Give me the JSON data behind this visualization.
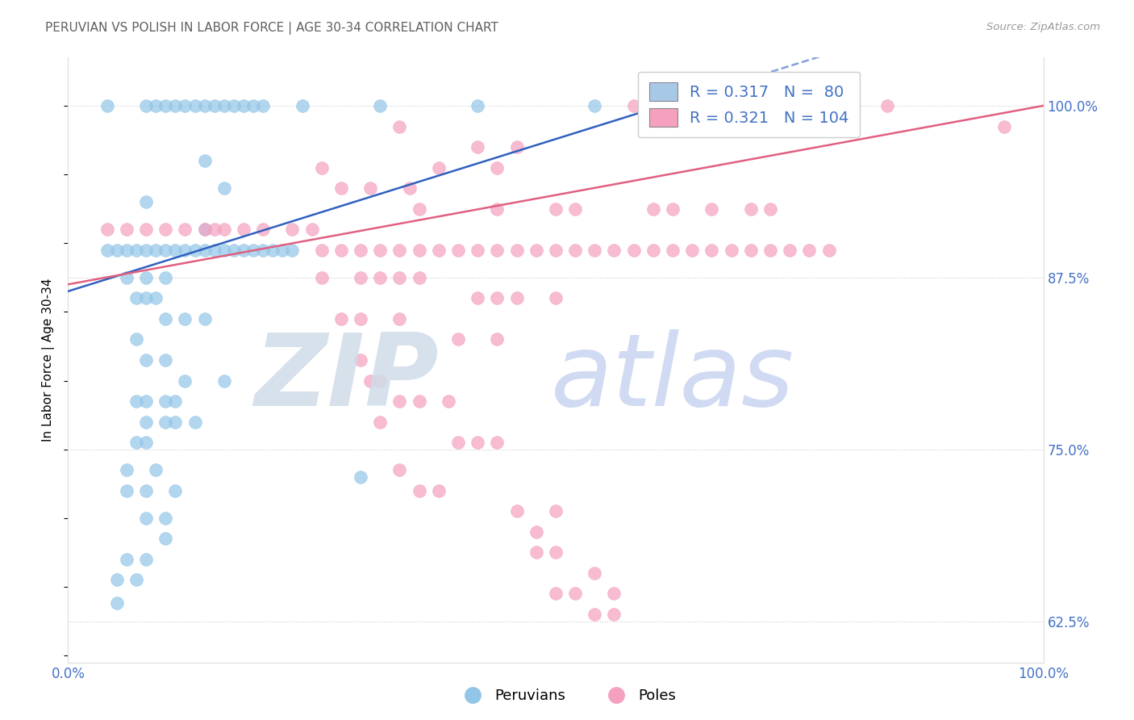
{
  "title": "PERUVIAN VS POLISH IN LABOR FORCE | AGE 30-34 CORRELATION CHART",
  "source_text": "Source: ZipAtlas.com",
  "ylabel": "In Labor Force | Age 30-34",
  "xlim": [
    0.0,
    0.5
  ],
  "ylim": [
    0.595,
    1.035
  ],
  "yticks": [
    0.625,
    0.75,
    0.875,
    1.0
  ],
  "ytick_labels": [
    "62.5%",
    "75.0%",
    "87.5%",
    "100.0%"
  ],
  "xticks": [
    0.0,
    0.5
  ],
  "xtick_labels": [
    "0.0%",
    "100.0%"
  ],
  "peruvian_color": "#92C5E8",
  "polish_color": "#F4A0BE",
  "peruvian_line_color": "#3060C0",
  "polish_line_color": "#E06080",
  "axis_color": "#4472C4",
  "title_color": "#606060",
  "title_fontsize": 11,
  "watermark_zip_color": "#D8E8F0",
  "watermark_atlas_color": "#C8D8F0",
  "peruvian_scatter": [
    [
      0.02,
      1.0
    ],
    [
      0.04,
      1.0
    ],
    [
      0.045,
      1.0
    ],
    [
      0.05,
      1.0
    ],
    [
      0.055,
      1.0
    ],
    [
      0.06,
      1.0
    ],
    [
      0.065,
      1.0
    ],
    [
      0.07,
      1.0
    ],
    [
      0.075,
      1.0
    ],
    [
      0.08,
      1.0
    ],
    [
      0.085,
      1.0
    ],
    [
      0.09,
      1.0
    ],
    [
      0.095,
      1.0
    ],
    [
      0.1,
      1.0
    ],
    [
      0.12,
      1.0
    ],
    [
      0.16,
      1.0
    ],
    [
      0.21,
      1.0
    ],
    [
      0.27,
      1.0
    ],
    [
      0.07,
      0.96
    ],
    [
      0.08,
      0.94
    ],
    [
      0.04,
      0.93
    ],
    [
      0.07,
      0.91
    ],
    [
      0.02,
      0.895
    ],
    [
      0.025,
      0.895
    ],
    [
      0.03,
      0.895
    ],
    [
      0.035,
      0.895
    ],
    [
      0.04,
      0.895
    ],
    [
      0.045,
      0.895
    ],
    [
      0.05,
      0.895
    ],
    [
      0.055,
      0.895
    ],
    [
      0.06,
      0.895
    ],
    [
      0.065,
      0.895
    ],
    [
      0.07,
      0.895
    ],
    [
      0.075,
      0.895
    ],
    [
      0.08,
      0.895
    ],
    [
      0.085,
      0.895
    ],
    [
      0.09,
      0.895
    ],
    [
      0.095,
      0.895
    ],
    [
      0.1,
      0.895
    ],
    [
      0.105,
      0.895
    ],
    [
      0.11,
      0.895
    ],
    [
      0.115,
      0.895
    ],
    [
      0.03,
      0.875
    ],
    [
      0.04,
      0.875
    ],
    [
      0.05,
      0.875
    ],
    [
      0.035,
      0.86
    ],
    [
      0.04,
      0.86
    ],
    [
      0.045,
      0.86
    ],
    [
      0.05,
      0.845
    ],
    [
      0.06,
      0.845
    ],
    [
      0.07,
      0.845
    ],
    [
      0.035,
      0.83
    ],
    [
      0.04,
      0.815
    ],
    [
      0.05,
      0.815
    ],
    [
      0.06,
      0.8
    ],
    [
      0.08,
      0.8
    ],
    [
      0.035,
      0.785
    ],
    [
      0.04,
      0.785
    ],
    [
      0.05,
      0.785
    ],
    [
      0.055,
      0.785
    ],
    [
      0.04,
      0.77
    ],
    [
      0.05,
      0.77
    ],
    [
      0.055,
      0.77
    ],
    [
      0.065,
      0.77
    ],
    [
      0.035,
      0.755
    ],
    [
      0.04,
      0.755
    ],
    [
      0.03,
      0.735
    ],
    [
      0.045,
      0.735
    ],
    [
      0.03,
      0.72
    ],
    [
      0.04,
      0.72
    ],
    [
      0.055,
      0.72
    ],
    [
      0.04,
      0.7
    ],
    [
      0.05,
      0.7
    ],
    [
      0.05,
      0.685
    ],
    [
      0.03,
      0.67
    ],
    [
      0.04,
      0.67
    ],
    [
      0.025,
      0.655
    ],
    [
      0.035,
      0.655
    ],
    [
      0.025,
      0.638
    ],
    [
      0.15,
      0.73
    ]
  ],
  "polish_scatter": [
    [
      0.29,
      1.0
    ],
    [
      0.39,
      1.0
    ],
    [
      0.42,
      1.0
    ],
    [
      0.17,
      0.985
    ],
    [
      0.3,
      0.985
    ],
    [
      0.48,
      0.985
    ],
    [
      0.21,
      0.97
    ],
    [
      0.23,
      0.97
    ],
    [
      0.13,
      0.955
    ],
    [
      0.19,
      0.955
    ],
    [
      0.22,
      0.955
    ],
    [
      0.14,
      0.94
    ],
    [
      0.155,
      0.94
    ],
    [
      0.175,
      0.94
    ],
    [
      0.18,
      0.925
    ],
    [
      0.22,
      0.925
    ],
    [
      0.25,
      0.925
    ],
    [
      0.26,
      0.925
    ],
    [
      0.3,
      0.925
    ],
    [
      0.31,
      0.925
    ],
    [
      0.33,
      0.925
    ],
    [
      0.35,
      0.925
    ],
    [
      0.36,
      0.925
    ],
    [
      0.02,
      0.91
    ],
    [
      0.03,
      0.91
    ],
    [
      0.04,
      0.91
    ],
    [
      0.05,
      0.91
    ],
    [
      0.06,
      0.91
    ],
    [
      0.07,
      0.91
    ],
    [
      0.075,
      0.91
    ],
    [
      0.08,
      0.91
    ],
    [
      0.09,
      0.91
    ],
    [
      0.1,
      0.91
    ],
    [
      0.115,
      0.91
    ],
    [
      0.125,
      0.91
    ],
    [
      0.13,
      0.895
    ],
    [
      0.14,
      0.895
    ],
    [
      0.15,
      0.895
    ],
    [
      0.16,
      0.895
    ],
    [
      0.17,
      0.895
    ],
    [
      0.18,
      0.895
    ],
    [
      0.19,
      0.895
    ],
    [
      0.2,
      0.895
    ],
    [
      0.21,
      0.895
    ],
    [
      0.22,
      0.895
    ],
    [
      0.23,
      0.895
    ],
    [
      0.24,
      0.895
    ],
    [
      0.25,
      0.895
    ],
    [
      0.26,
      0.895
    ],
    [
      0.27,
      0.895
    ],
    [
      0.28,
      0.895
    ],
    [
      0.29,
      0.895
    ],
    [
      0.3,
      0.895
    ],
    [
      0.31,
      0.895
    ],
    [
      0.32,
      0.895
    ],
    [
      0.33,
      0.895
    ],
    [
      0.34,
      0.895
    ],
    [
      0.35,
      0.895
    ],
    [
      0.36,
      0.895
    ],
    [
      0.37,
      0.895
    ],
    [
      0.38,
      0.895
    ],
    [
      0.39,
      0.895
    ],
    [
      0.13,
      0.875
    ],
    [
      0.15,
      0.875
    ],
    [
      0.16,
      0.875
    ],
    [
      0.17,
      0.875
    ],
    [
      0.18,
      0.875
    ],
    [
      0.21,
      0.86
    ],
    [
      0.22,
      0.86
    ],
    [
      0.23,
      0.86
    ],
    [
      0.25,
      0.86
    ],
    [
      0.14,
      0.845
    ],
    [
      0.15,
      0.845
    ],
    [
      0.17,
      0.845
    ],
    [
      0.2,
      0.83
    ],
    [
      0.22,
      0.83
    ],
    [
      0.15,
      0.815
    ],
    [
      0.155,
      0.8
    ],
    [
      0.16,
      0.8
    ],
    [
      0.17,
      0.785
    ],
    [
      0.18,
      0.785
    ],
    [
      0.195,
      0.785
    ],
    [
      0.16,
      0.77
    ],
    [
      0.2,
      0.755
    ],
    [
      0.21,
      0.755
    ],
    [
      0.22,
      0.755
    ],
    [
      0.17,
      0.735
    ],
    [
      0.18,
      0.72
    ],
    [
      0.19,
      0.72
    ],
    [
      0.23,
      0.705
    ],
    [
      0.25,
      0.705
    ],
    [
      0.24,
      0.69
    ],
    [
      0.24,
      0.675
    ],
    [
      0.25,
      0.675
    ],
    [
      0.27,
      0.66
    ],
    [
      0.25,
      0.645
    ],
    [
      0.26,
      0.645
    ],
    [
      0.28,
      0.645
    ],
    [
      0.27,
      0.63
    ],
    [
      0.28,
      0.63
    ]
  ]
}
